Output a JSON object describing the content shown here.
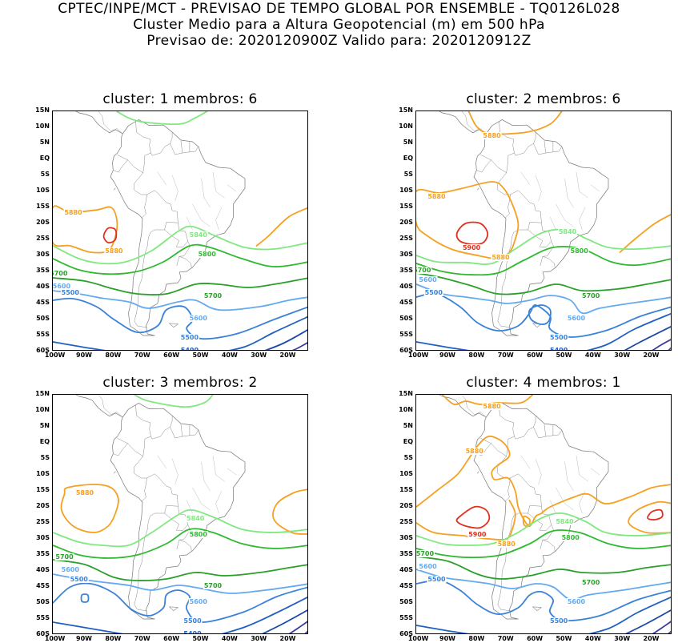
{
  "header": {
    "line1": "CPTEC/INPE/MCT - PREVISAO DE TEMPO GLOBAL POR ENSEMBLE - TQ0126L028",
    "line2": "Cluster Medio para a Altura Geopotencial (m) em 500 hPa",
    "line3": "Previsao de: 2020120900Z    Valido para: 2020120912Z"
  },
  "axes": {
    "lat_labels": [
      "15N",
      "10N",
      "5N",
      "EQ",
      "5S",
      "10S",
      "15S",
      "20S",
      "25S",
      "30S",
      "35S",
      "40S",
      "45S",
      "50S",
      "55S",
      "60S"
    ],
    "lon_labels": [
      "100W",
      "90W",
      "80W",
      "70W",
      "60W",
      "50W",
      "40W",
      "30W",
      "20W"
    ]
  },
  "contour_colors": {
    "5900": "#e0301e",
    "5880": "#f5a020",
    "5840": "#80e880",
    "5800": "#30b830",
    "5700": "#2aa02a",
    "5600": "#64aaf0",
    "5500": "#3a82d8",
    "5400": "#2060c0",
    "5300": "#1a48a8",
    "5200": "#3a3aa0",
    "5100": "#6040b0"
  },
  "panels": [
    {
      "title": "cluster: 1   membros: 6",
      "contour_labels": [
        {
          "text": "5880",
          "color": "#f5a020",
          "lon": -94,
          "lat": -17
        },
        {
          "text": "5880",
          "color": "#f5a020",
          "lon": -80,
          "lat": -29
        },
        {
          "text": "5840",
          "color": "#80e880",
          "lon": -51,
          "lat": -24
        },
        {
          "text": "5800",
          "color": "#30b830",
          "lon": -48,
          "lat": -30
        },
        {
          "text": "5700",
          "color": "#2aa02a",
          "lon": -99,
          "lat": -36
        },
        {
          "text": "5700",
          "color": "#2aa02a",
          "lon": -46,
          "lat": -43
        },
        {
          "text": "5600",
          "color": "#64aaf0",
          "lon": -98,
          "lat": -40
        },
        {
          "text": "5600",
          "color": "#64aaf0",
          "lon": -51,
          "lat": -50
        },
        {
          "text": "5500",
          "color": "#3a82d8",
          "lon": -95,
          "lat": -42
        },
        {
          "text": "5500",
          "color": "#3a82d8",
          "lon": -54,
          "lat": -56
        },
        {
          "text": "5400",
          "color": "#2060c0",
          "lon": -54,
          "lat": -60
        }
      ]
    },
    {
      "title": "cluster: 2   membros: 6",
      "contour_labels": [
        {
          "text": "5880",
          "color": "#f5a020",
          "lon": -75,
          "lat": 7
        },
        {
          "text": "5880",
          "color": "#f5a020",
          "lon": -94,
          "lat": -12
        },
        {
          "text": "5900",
          "color": "#e0301e",
          "lon": -82,
          "lat": -28
        },
        {
          "text": "5880",
          "color": "#f5a020",
          "lon": -72,
          "lat": -31
        },
        {
          "text": "5840",
          "color": "#80e880",
          "lon": -49,
          "lat": -23
        },
        {
          "text": "5800",
          "color": "#30b830",
          "lon": -45,
          "lat": -29
        },
        {
          "text": "5700",
          "color": "#2aa02a",
          "lon": -99,
          "lat": -35
        },
        {
          "text": "5700",
          "color": "#2aa02a",
          "lon": -41,
          "lat": -43
        },
        {
          "text": "5600",
          "color": "#64aaf0",
          "lon": -97,
          "lat": -38
        },
        {
          "text": "5600",
          "color": "#64aaf0",
          "lon": -46,
          "lat": -50
        },
        {
          "text": "5500",
          "color": "#3a82d8",
          "lon": -95,
          "lat": -42
        },
        {
          "text": "5500",
          "color": "#3a82d8",
          "lon": -52,
          "lat": -56
        },
        {
          "text": "5400",
          "color": "#2060c0",
          "lon": -52,
          "lat": -60
        }
      ]
    },
    {
      "title": "cluster: 3   membros: 2",
      "contour_labels": [
        {
          "text": "5880",
          "color": "#f5a020",
          "lon": -90,
          "lat": -16
        },
        {
          "text": "5840",
          "color": "#80e880",
          "lon": -52,
          "lat": -24
        },
        {
          "text": "5800",
          "color": "#30b830",
          "lon": -51,
          "lat": -29
        },
        {
          "text": "5700",
          "color": "#2aa02a",
          "lon": -97,
          "lat": -36
        },
        {
          "text": "5700",
          "color": "#2aa02a",
          "lon": -46,
          "lat": -45
        },
        {
          "text": "5600",
          "color": "#64aaf0",
          "lon": -95,
          "lat": -40
        },
        {
          "text": "5600",
          "color": "#64aaf0",
          "lon": -51,
          "lat": -50
        },
        {
          "text": "5500",
          "color": "#3a82d8",
          "lon": -92,
          "lat": -43
        },
        {
          "text": "5500",
          "color": "#3a82d8",
          "lon": -53,
          "lat": -56
        },
        {
          "text": "5400",
          "color": "#2060c0",
          "lon": -53,
          "lat": -60
        }
      ]
    },
    {
      "title": "cluster: 4   membros: 1",
      "contour_labels": [
        {
          "text": "5880",
          "color": "#f5a020",
          "lon": -75,
          "lat": 11
        },
        {
          "text": "5880",
          "color": "#f5a020",
          "lon": -81,
          "lat": -3
        },
        {
          "text": "5900",
          "color": "#e0301e",
          "lon": -80,
          "lat": -29
        },
        {
          "text": "5880",
          "color": "#f5a020",
          "lon": -70,
          "lat": -32
        },
        {
          "text": "5840",
          "color": "#80e880",
          "lon": -50,
          "lat": -25
        },
        {
          "text": "5800",
          "color": "#30b830",
          "lon": -48,
          "lat": -30
        },
        {
          "text": "5700",
          "color": "#2aa02a",
          "lon": -98,
          "lat": -35
        },
        {
          "text": "5700",
          "color": "#2aa02a",
          "lon": -41,
          "lat": -44
        },
        {
          "text": "5600",
          "color": "#64aaf0",
          "lon": -97,
          "lat": -39
        },
        {
          "text": "5600",
          "color": "#64aaf0",
          "lon": -46,
          "lat": -50
        },
        {
          "text": "5500",
          "color": "#3a82d8",
          "lon": -94,
          "lat": -43
        },
        {
          "text": "5500",
          "color": "#3a82d8",
          "lon": -52,
          "lat": -56
        }
      ]
    }
  ]
}
